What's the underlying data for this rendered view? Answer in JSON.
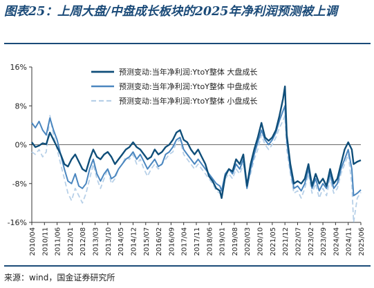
{
  "title": "图表25：上周大盘/中盘成长板块的2025年净利润预测被上调",
  "source": "来源：wind，国金证券研究所",
  "chart_data": {
    "type": "line",
    "ylim": [
      -16,
      16
    ],
    "yticks": [
      16,
      8,
      0,
      -8,
      -16
    ],
    "ytick_labels": [
      "16%",
      "8%",
      "0%",
      "-8%",
      "-16%"
    ],
    "x_start": "2010-04",
    "x_end": "2025-06",
    "xtick_labels": [
      "2010/04",
      "2010/11",
      "2011/06",
      "2012/01",
      "2012/08",
      "2013/03",
      "2013/10",
      "2014/05",
      "2014/12",
      "2015/07",
      "2016/02",
      "2016/09",
      "2017/04",
      "2017/11",
      "2018/06",
      "2019/01",
      "2019/08",
      "2020/03",
      "2020/10",
      "2021/05",
      "2021/12",
      "2022/07",
      "2023/02",
      "2023/09",
      "2024/04",
      "2024/11",
      "2025/06"
    ],
    "legend_position": "top-center",
    "series": [
      {
        "name": "预测变动:当年净利润:YtoY整体 大盘成长",
        "color": "#0f4e79",
        "width": 2.4,
        "dash": "",
        "values": [
          [
            "2010-04",
            0.5
          ],
          [
            "2010-06",
            -0.5
          ],
          [
            "2010-08",
            -0.2
          ],
          [
            "2010-10",
            0.3
          ],
          [
            "2010-12",
            0.1
          ],
          [
            "2011-02",
            2.5
          ],
          [
            "2011-04",
            1.0
          ],
          [
            "2011-06",
            -0.5
          ],
          [
            "2011-08",
            -2.0
          ],
          [
            "2011-10",
            -4.0
          ],
          [
            "2011-12",
            -4.5
          ],
          [
            "2012-02",
            -3.0
          ],
          [
            "2012-04",
            -2.0
          ],
          [
            "2012-06",
            -3.5
          ],
          [
            "2012-08",
            -5.0
          ],
          [
            "2012-10",
            -5.5
          ],
          [
            "2012-12",
            -3.0
          ],
          [
            "2013-02",
            -1.0
          ],
          [
            "2013-04",
            -2.5
          ],
          [
            "2013-06",
            -3.0
          ],
          [
            "2013-08",
            -2.0
          ],
          [
            "2013-10",
            -1.5
          ],
          [
            "2013-12",
            -2.5
          ],
          [
            "2014-02",
            -4.0
          ],
          [
            "2014-04",
            -3.0
          ],
          [
            "2014-06",
            -2.0
          ],
          [
            "2014-08",
            -1.0
          ],
          [
            "2014-10",
            -0.5
          ],
          [
            "2014-12",
            0.5
          ],
          [
            "2015-02",
            -0.5
          ],
          [
            "2015-04",
            -1.0
          ],
          [
            "2015-06",
            -2.0
          ],
          [
            "2015-08",
            -3.0
          ],
          [
            "2015-10",
            -2.5
          ],
          [
            "2015-12",
            -1.0
          ],
          [
            "2016-02",
            -2.0
          ],
          [
            "2016-04",
            -1.5
          ],
          [
            "2016-06",
            -0.5
          ],
          [
            "2016-08",
            0.0
          ],
          [
            "2016-10",
            1.0
          ],
          [
            "2016-12",
            2.5
          ],
          [
            "2017-02",
            3.0
          ],
          [
            "2017-04",
            1.0
          ],
          [
            "2017-06",
            0.5
          ],
          [
            "2017-08",
            -1.0
          ],
          [
            "2017-10",
            -2.0
          ],
          [
            "2017-12",
            -1.0
          ],
          [
            "2018-02",
            -2.5
          ],
          [
            "2018-04",
            -4.0
          ],
          [
            "2018-06",
            -6.5
          ],
          [
            "2018-08",
            -7.5
          ],
          [
            "2018-10",
            -9.0
          ],
          [
            "2018-12",
            -9.5
          ],
          [
            "2019-01",
            -11.0
          ],
          [
            "2019-03",
            -6.5
          ],
          [
            "2019-05",
            -5.0
          ],
          [
            "2019-07",
            -5.5
          ],
          [
            "2019-09",
            -3.0
          ],
          [
            "2019-11",
            -4.0
          ],
          [
            "2020-01",
            -2.0
          ],
          [
            "2020-03",
            -8.5
          ],
          [
            "2020-05",
            -4.0
          ],
          [
            "2020-07",
            -1.0
          ],
          [
            "2020-09",
            1.5
          ],
          [
            "2020-11",
            4.5
          ],
          [
            "2021-01",
            1.5
          ],
          [
            "2021-03",
            0.8
          ],
          [
            "2021-05",
            1.5
          ],
          [
            "2021-07",
            3.0
          ],
          [
            "2021-09",
            6.0
          ],
          [
            "2021-11",
            9.5
          ],
          [
            "2021-12",
            12.0
          ],
          [
            "2022-01",
            2.0
          ],
          [
            "2022-03",
            -4.0
          ],
          [
            "2022-05",
            -8.0
          ],
          [
            "2022-07",
            -7.5
          ],
          [
            "2022-09",
            -8.0
          ],
          [
            "2022-11",
            -7.0
          ],
          [
            "2023-01",
            -4.0
          ],
          [
            "2023-03",
            -8.5
          ],
          [
            "2023-05",
            -6.0
          ],
          [
            "2023-07",
            -8.0
          ],
          [
            "2023-09",
            -7.0
          ],
          [
            "2023-11",
            -8.5
          ],
          [
            "2024-01",
            -5.0
          ],
          [
            "2024-03",
            -8.0
          ],
          [
            "2024-05",
            -7.0
          ],
          [
            "2024-07",
            -4.0
          ],
          [
            "2024-09",
            -1.0
          ],
          [
            "2024-11",
            0.5
          ],
          [
            "2025-01",
            -1.0
          ],
          [
            "2025-02",
            -4.0
          ],
          [
            "2025-04",
            -3.5
          ],
          [
            "2025-06",
            -3.2
          ]
        ]
      },
      {
        "name": "预测变动:当年净利润:YtoY整体 中盘成长",
        "color": "#4a86bf",
        "width": 2.0,
        "dash": "",
        "values": [
          [
            "2010-04",
            4.5
          ],
          [
            "2010-06",
            3.5
          ],
          [
            "2010-08",
            4.8
          ],
          [
            "2010-10",
            3.0
          ],
          [
            "2010-12",
            2.0
          ],
          [
            "2011-02",
            5.5
          ],
          [
            "2011-04",
            3.0
          ],
          [
            "2011-06",
            1.0
          ],
          [
            "2011-08",
            -2.0
          ],
          [
            "2011-10",
            -5.0
          ],
          [
            "2011-12",
            -7.5
          ],
          [
            "2012-02",
            -8.0
          ],
          [
            "2012-04",
            -6.0
          ],
          [
            "2012-06",
            -8.5
          ],
          [
            "2012-08",
            -9.0
          ],
          [
            "2012-10",
            -8.0
          ],
          [
            "2012-12",
            -5.0
          ],
          [
            "2013-02",
            -3.0
          ],
          [
            "2013-04",
            -6.0
          ],
          [
            "2013-06",
            -7.5
          ],
          [
            "2013-08",
            -6.0
          ],
          [
            "2013-10",
            -5.0
          ],
          [
            "2013-12",
            -7.0
          ],
          [
            "2014-02",
            -6.5
          ],
          [
            "2014-04",
            -5.0
          ],
          [
            "2014-06",
            -4.0
          ],
          [
            "2014-08",
            -3.0
          ],
          [
            "2014-10",
            -2.5
          ],
          [
            "2014-12",
            -1.5
          ],
          [
            "2015-02",
            -3.0
          ],
          [
            "2015-04",
            -2.0
          ],
          [
            "2015-06",
            -3.5
          ],
          [
            "2015-08",
            -5.0
          ],
          [
            "2015-10",
            -4.0
          ],
          [
            "2015-12",
            -3.0
          ],
          [
            "2016-02",
            -4.5
          ],
          [
            "2016-04",
            -4.0
          ],
          [
            "2016-06",
            -2.0
          ],
          [
            "2016-08",
            -1.5
          ],
          [
            "2016-10",
            -0.5
          ],
          [
            "2016-12",
            1.0
          ],
          [
            "2017-02",
            1.5
          ],
          [
            "2017-04",
            -1.0
          ],
          [
            "2017-06",
            -2.0
          ],
          [
            "2017-08",
            -3.0
          ],
          [
            "2017-10",
            -4.0
          ],
          [
            "2017-12",
            -3.0
          ],
          [
            "2018-02",
            -4.0
          ],
          [
            "2018-04",
            -5.0
          ],
          [
            "2018-06",
            -6.0
          ],
          [
            "2018-08",
            -7.0
          ],
          [
            "2018-10",
            -8.0
          ],
          [
            "2018-12",
            -8.5
          ],
          [
            "2019-01",
            -9.5
          ],
          [
            "2019-03",
            -6.0
          ],
          [
            "2019-05",
            -5.0
          ],
          [
            "2019-07",
            -6.0
          ],
          [
            "2019-09",
            -4.0
          ],
          [
            "2019-11",
            -5.0
          ],
          [
            "2020-01",
            -3.0
          ],
          [
            "2020-03",
            -9.0
          ],
          [
            "2020-05",
            -5.0
          ],
          [
            "2020-07",
            -2.0
          ],
          [
            "2020-09",
            0.5
          ],
          [
            "2020-11",
            3.0
          ],
          [
            "2021-01",
            1.0
          ],
          [
            "2021-03",
            0.0
          ],
          [
            "2021-05",
            1.0
          ],
          [
            "2021-07",
            2.5
          ],
          [
            "2021-09",
            5.0
          ],
          [
            "2021-11",
            7.0
          ],
          [
            "2021-12",
            8.0
          ],
          [
            "2022-01",
            1.0
          ],
          [
            "2022-03",
            -5.0
          ],
          [
            "2022-05",
            -9.0
          ],
          [
            "2022-07",
            -8.5
          ],
          [
            "2022-09",
            -9.5
          ],
          [
            "2022-11",
            -8.0
          ],
          [
            "2023-01",
            -5.0
          ],
          [
            "2023-03",
            -9.0
          ],
          [
            "2023-05",
            -7.0
          ],
          [
            "2023-07",
            -9.5
          ],
          [
            "2023-09",
            -8.0
          ],
          [
            "2023-11",
            -9.0
          ],
          [
            "2024-01",
            -6.0
          ],
          [
            "2024-03",
            -9.0
          ],
          [
            "2024-05",
            -8.0
          ],
          [
            "2024-07",
            -5.0
          ],
          [
            "2024-09",
            -3.0
          ],
          [
            "2024-11",
            -1.0
          ],
          [
            "2025-01",
            -5.0
          ],
          [
            "2025-02",
            -10.5
          ],
          [
            "2025-04",
            -10.0
          ],
          [
            "2025-06",
            -9.3
          ]
        ]
      },
      {
        "name": "预测变动:当年净利润:YtoY整体 小盘成长",
        "color": "#b7d0e8",
        "width": 1.8,
        "dash": "7,4",
        "values": [
          [
            "2010-04",
            -1.5
          ],
          [
            "2010-06",
            -2.0
          ],
          [
            "2010-08",
            -1.0
          ],
          [
            "2010-10",
            -2.5
          ],
          [
            "2010-12",
            -1.5
          ],
          [
            "2011-02",
            6.0
          ],
          [
            "2011-04",
            2.0
          ],
          [
            "2011-06",
            -1.0
          ],
          [
            "2011-08",
            -4.0
          ],
          [
            "2011-10",
            -7.0
          ],
          [
            "2011-12",
            -10.0
          ],
          [
            "2012-02",
            -11.5
          ],
          [
            "2012-04",
            -9.0
          ],
          [
            "2012-06",
            -10.5
          ],
          [
            "2012-08",
            -12.0
          ],
          [
            "2012-10",
            -10.0
          ],
          [
            "2012-12",
            -7.0
          ],
          [
            "2013-02",
            -4.0
          ],
          [
            "2013-04",
            -7.0
          ],
          [
            "2013-06",
            -9.0
          ],
          [
            "2013-08",
            -7.0
          ],
          [
            "2013-10",
            -5.0
          ],
          [
            "2013-12",
            -8.0
          ],
          [
            "2014-02",
            -7.0
          ],
          [
            "2014-04",
            -5.0
          ],
          [
            "2014-06",
            -4.0
          ],
          [
            "2014-08",
            -2.5
          ],
          [
            "2014-10",
            -3.0
          ],
          [
            "2014-12",
            -2.0
          ],
          [
            "2015-02",
            -4.0
          ],
          [
            "2015-04",
            -3.0
          ],
          [
            "2015-06",
            -5.0
          ],
          [
            "2015-08",
            -6.5
          ],
          [
            "2015-10",
            -5.0
          ],
          [
            "2015-12",
            -4.0
          ],
          [
            "2016-02",
            -5.0
          ],
          [
            "2016-04",
            -4.0
          ],
          [
            "2016-06",
            -3.0
          ],
          [
            "2016-08",
            -2.0
          ],
          [
            "2016-10",
            -1.5
          ],
          [
            "2016-12",
            0.5
          ],
          [
            "2017-02",
            1.0
          ],
          [
            "2017-04",
            -2.0
          ],
          [
            "2017-06",
            -3.0
          ],
          [
            "2017-08",
            -4.0
          ],
          [
            "2017-10",
            -5.0
          ],
          [
            "2017-12",
            -4.0
          ],
          [
            "2018-02",
            -5.0
          ],
          [
            "2018-04",
            -6.0
          ],
          [
            "2018-06",
            -7.0
          ],
          [
            "2018-08",
            -8.0
          ],
          [
            "2018-10",
            -9.5
          ],
          [
            "2018-12",
            -10.0
          ],
          [
            "2019-01",
            -10.5
          ],
          [
            "2019-03",
            -7.0
          ],
          [
            "2019-05",
            -6.0
          ],
          [
            "2019-07",
            -7.0
          ],
          [
            "2019-09",
            -5.0
          ],
          [
            "2019-11",
            -6.0
          ],
          [
            "2020-01",
            -4.0
          ],
          [
            "2020-03",
            -8.0
          ],
          [
            "2020-05",
            -6.0
          ],
          [
            "2020-07",
            -3.0
          ],
          [
            "2020-09",
            -1.0
          ],
          [
            "2020-11",
            2.0
          ],
          [
            "2021-01",
            0.0
          ],
          [
            "2021-03",
            -1.0
          ],
          [
            "2021-05",
            0.0
          ],
          [
            "2021-07",
            1.5
          ],
          [
            "2021-09",
            3.5
          ],
          [
            "2021-11",
            5.0
          ],
          [
            "2021-12",
            6.0
          ],
          [
            "2022-01",
            -1.0
          ],
          [
            "2022-03",
            -6.0
          ],
          [
            "2022-05",
            -10.0
          ],
          [
            "2022-07",
            -9.5
          ],
          [
            "2022-09",
            -11.0
          ],
          [
            "2022-11",
            -9.0
          ],
          [
            "2023-01",
            -6.0
          ],
          [
            "2023-03",
            -10.0
          ],
          [
            "2023-05",
            -8.0
          ],
          [
            "2023-07",
            -11.0
          ],
          [
            "2023-09",
            -9.0
          ],
          [
            "2023-11",
            -10.5
          ],
          [
            "2024-01",
            -7.0
          ],
          [
            "2024-03",
            -10.0
          ],
          [
            "2024-05",
            -9.0
          ],
          [
            "2024-07",
            -6.0
          ],
          [
            "2024-09",
            -4.0
          ],
          [
            "2024-11",
            -2.0
          ],
          [
            "2025-01",
            -8.0
          ],
          [
            "2025-02",
            -16.0
          ],
          [
            "2025-04",
            -11.0
          ],
          [
            "2025-06",
            -9.8
          ]
        ]
      }
    ]
  }
}
